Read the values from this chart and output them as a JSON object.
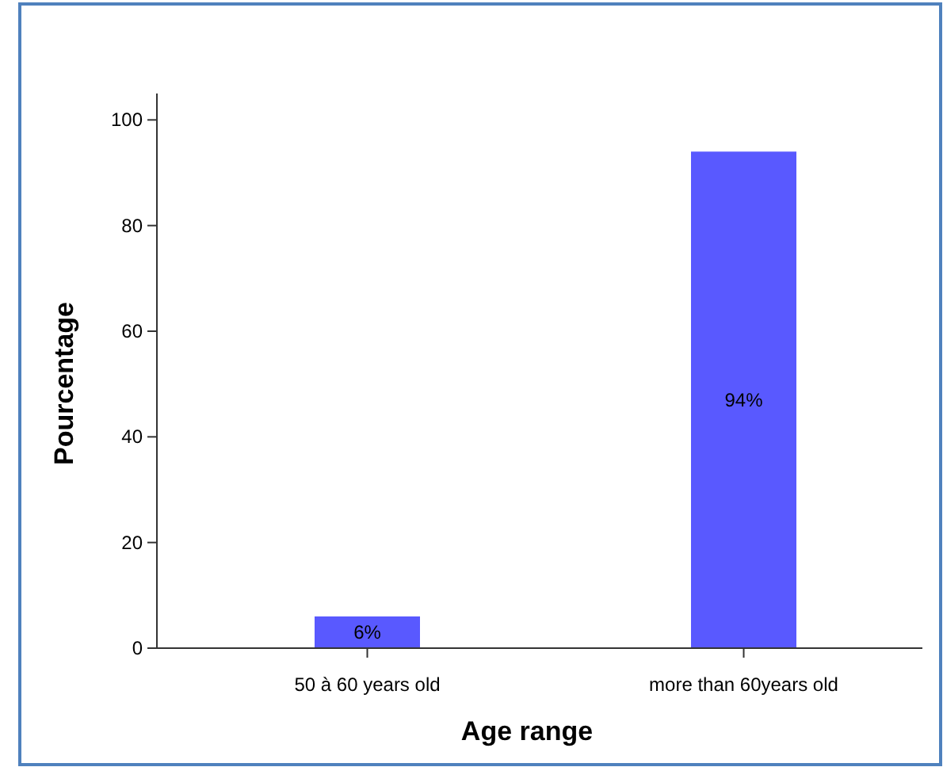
{
  "chart_data": {
    "type": "bar",
    "xlabel": "Age range",
    "ylabel": "Pourcentage",
    "categories": [
      "50 à 60 years old",
      "more than 60years old"
    ],
    "values": [
      6,
      94
    ],
    "value_labels": [
      "6%",
      "94%"
    ],
    "color": "#5959ff",
    "ylim": [
      0,
      105
    ],
    "yticks": [
      0,
      20,
      40,
      60,
      80,
      100
    ],
    "grid": false
  }
}
